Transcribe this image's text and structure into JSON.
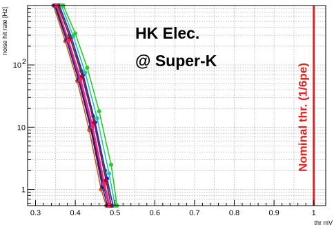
{
  "chart_data": {
    "type": "line",
    "title": "",
    "xlabel": "thr mV",
    "ylabel": "noise hit rate [Hz]",
    "xlim": [
      0.28,
      1.03
    ],
    "ylim": [
      0.55,
      900
    ],
    "yscale": "log",
    "grid": true,
    "legend": "none",
    "x_ticks": [
      "0.3",
      "0.4",
      "0.5",
      "0.6",
      "0.7",
      "0.8",
      "0.9",
      "1"
    ],
    "y_ticks": [
      {
        "value": 1,
        "base": "1",
        "exp": ""
      },
      {
        "value": 10,
        "base": "10",
        "exp": ""
      },
      {
        "value": 100,
        "base": "10",
        "exp": "2"
      }
    ],
    "annotations": {
      "line1": "HK Elec.",
      "line2": "@ Super-K",
      "nominal": "Nominal thr. (1/6pe)"
    },
    "nominal_threshold": {
      "x": 1.0,
      "color": "#e82020"
    },
    "series": [
      {
        "color": "#1aa01a",
        "points": [
          [
            0.355,
            900
          ],
          [
            0.385,
            300
          ],
          [
            0.415,
            80
          ],
          [
            0.445,
            15
          ],
          [
            0.475,
            2
          ],
          [
            0.49,
            0.55
          ]
        ]
      },
      {
        "color": "#2020d0",
        "points": [
          [
            0.36,
            900
          ],
          [
            0.39,
            280
          ],
          [
            0.42,
            70
          ],
          [
            0.45,
            12
          ],
          [
            0.48,
            1.5
          ],
          [
            0.495,
            0.55
          ]
        ]
      },
      {
        "color": "#111111",
        "points": [
          [
            0.35,
            900
          ],
          [
            0.38,
            260
          ],
          [
            0.41,
            60
          ],
          [
            0.44,
            10
          ],
          [
            0.47,
            1.2
          ],
          [
            0.485,
            0.55
          ]
        ]
      },
      {
        "color": "#e05010",
        "points": [
          [
            0.345,
            900
          ],
          [
            0.375,
            240
          ],
          [
            0.405,
            55
          ],
          [
            0.435,
            9
          ],
          [
            0.465,
            1.0
          ],
          [
            0.478,
            0.55
          ]
        ]
      },
      {
        "color": "#e020e0",
        "points": [
          [
            0.353,
            900
          ],
          [
            0.383,
            250
          ],
          [
            0.413,
            62
          ],
          [
            0.443,
            11
          ],
          [
            0.473,
            1.3
          ],
          [
            0.487,
            0.55
          ]
        ]
      },
      {
        "color": "#20c0c0",
        "points": [
          [
            0.365,
            900
          ],
          [
            0.395,
            290
          ],
          [
            0.425,
            75
          ],
          [
            0.455,
            14
          ],
          [
            0.485,
            1.8
          ],
          [
            0.5,
            0.55
          ]
        ]
      },
      {
        "color": "#a01020",
        "points": [
          [
            0.357,
            900
          ],
          [
            0.387,
            270
          ],
          [
            0.417,
            66
          ],
          [
            0.447,
            12
          ],
          [
            0.477,
            1.4
          ],
          [
            0.49,
            0.55
          ]
        ]
      },
      {
        "color": "#22d022",
        "points": [
          [
            0.37,
            900
          ],
          [
            0.4,
            320
          ],
          [
            0.43,
            90
          ],
          [
            0.46,
            18
          ],
          [
            0.49,
            2.5
          ],
          [
            0.505,
            0.55
          ]
        ]
      },
      {
        "color": "#0030a0",
        "points": [
          [
            0.348,
            900
          ],
          [
            0.378,
            250
          ],
          [
            0.408,
            58
          ],
          [
            0.438,
            10
          ],
          [
            0.468,
            1.1
          ],
          [
            0.481,
            0.55
          ]
        ]
      },
      {
        "color": "#ff2060",
        "points": [
          [
            0.352,
            900
          ],
          [
            0.382,
            245
          ],
          [
            0.412,
            57
          ],
          [
            0.442,
            10
          ],
          [
            0.472,
            1.2
          ],
          [
            0.484,
            0.55
          ]
        ]
      }
    ]
  }
}
